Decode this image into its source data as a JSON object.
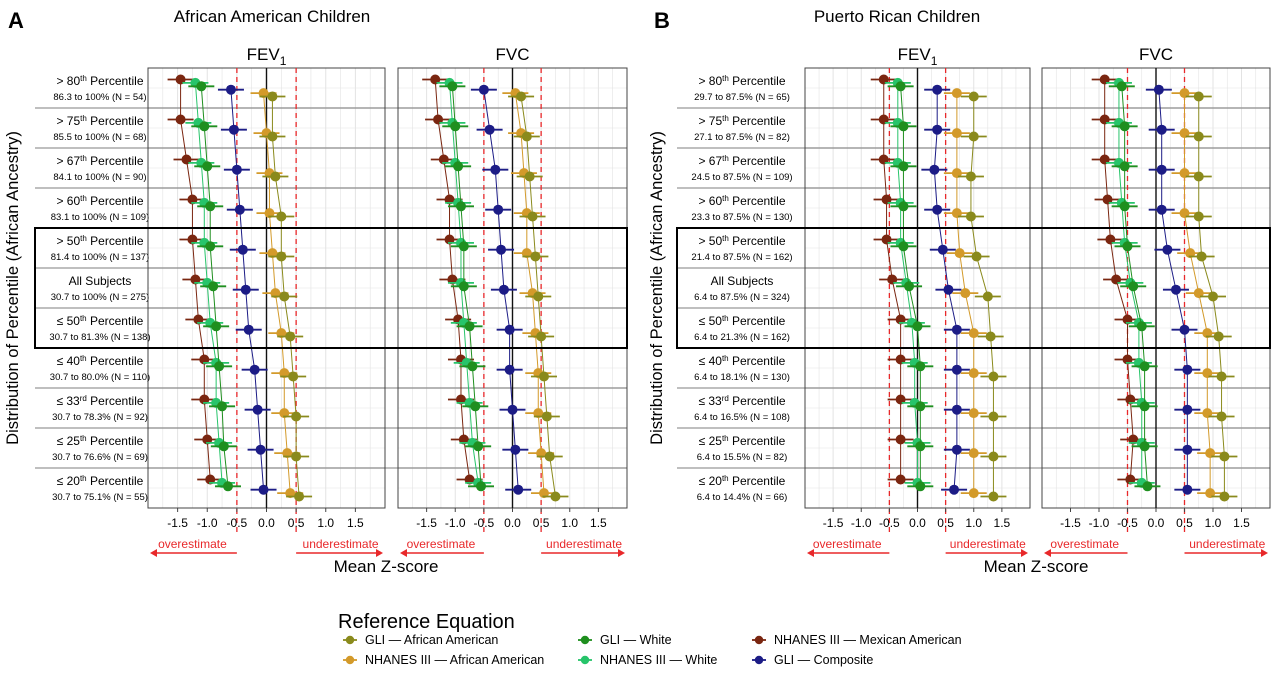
{
  "chart_data": [
    {
      "type": "scatter",
      "panel_letter": "A",
      "title": "African American Children",
      "ylabel": "Distribution of Percentile (African Ancestry)",
      "xlabel": "Mean Z-score",
      "xlim": [
        -2.0,
        2.0
      ],
      "xticks": [
        -1.5,
        -1.0,
        -0.5,
        0.0,
        0.5,
        1.0,
        1.5
      ],
      "grid": true,
      "reference_lines": [
        -0.5,
        0.0,
        0.5
      ],
      "over_label": "overestimate",
      "under_label": "underestimate",
      "highlight_rows": [
        4,
        6
      ],
      "rows": [
        {
          "main": "> 80",
          "sup": "th",
          "tail": " Percentile",
          "sub": "86.3 to 100% (N = 54)"
        },
        {
          "main": "> 75",
          "sup": "th",
          "tail": " Percentile",
          "sub": "85.5 to 100% (N = 68)"
        },
        {
          "main": "> 67",
          "sup": "th",
          "tail": " Percentile",
          "sub": "84.1 to 100% (N = 90)"
        },
        {
          "main": "> 60",
          "sup": "th",
          "tail": " Percentile",
          "sub": "83.1 to 100% (N = 109)"
        },
        {
          "main": "> 50",
          "sup": "th",
          "tail": " Percentile",
          "sub": "81.4 to 100% (N = 137)"
        },
        {
          "main": "All Subjects",
          "sup": "",
          "tail": "",
          "sub": "30.7 to 100% (N = 275)"
        },
        {
          "main": "≤ 50",
          "sup": "th",
          "tail": " Percentile",
          "sub": "30.7 to 81.3% (N = 138)"
        },
        {
          "main": "≤ 40",
          "sup": "th",
          "tail": " Percentile",
          "sub": "30.7 to 80.0% (N = 110)"
        },
        {
          "main": "≤ 33",
          "sup": "rd",
          "tail": " Percentile",
          "sub": "30.7 to 78.3% (N = 92)"
        },
        {
          "main": "≤ 25",
          "sup": "th",
          "tail": " Percentile",
          "sub": "30.7 to 76.6% (N = 69)"
        },
        {
          "main": "≤ 20",
          "sup": "th",
          "tail": " Percentile",
          "sub": "30.7 to 75.1% (N = 55)"
        }
      ],
      "facets": [
        {
          "label": "FEV",
          "label_sub": "1",
          "series": [
            {
              "name": "NHANES III — Mexican American",
              "values": [
                -1.45,
                -1.45,
                -1.35,
                -1.25,
                -1.25,
                -1.2,
                -1.15,
                -1.05,
                -1.05,
                -1.0,
                -0.95
              ]
            },
            {
              "name": "NHANES III — White",
              "values": [
                -1.2,
                -1.15,
                -1.1,
                -1.05,
                -1.05,
                -1.0,
                -0.95,
                -0.85,
                -0.85,
                -0.8,
                -0.75
              ]
            },
            {
              "name": "GLI — White",
              "values": [
                -1.1,
                -1.05,
                -1.0,
                -0.95,
                -0.95,
                -0.9,
                -0.85,
                -0.8,
                -0.75,
                -0.72,
                -0.65
              ]
            },
            {
              "name": "GLI — Composite",
              "values": [
                -0.6,
                -0.55,
                -0.5,
                -0.45,
                -0.4,
                -0.35,
                -0.3,
                -0.2,
                -0.15,
                -0.1,
                -0.05
              ]
            },
            {
              "name": "NHANES III — African American",
              "values": [
                -0.05,
                0.0,
                0.05,
                0.05,
                0.1,
                0.15,
                0.25,
                0.3,
                0.3,
                0.35,
                0.4
              ]
            },
            {
              "name": "GLI — African American",
              "values": [
                0.1,
                0.1,
                0.15,
                0.25,
                0.25,
                0.3,
                0.4,
                0.45,
                0.5,
                0.5,
                0.55
              ]
            }
          ]
        },
        {
          "label": "FVC",
          "label_sub": "",
          "series": [
            {
              "name": "NHANES III — Mexican American",
              "values": [
                -1.35,
                -1.3,
                -1.2,
                -1.1,
                -1.1,
                -1.05,
                -0.95,
                -0.9,
                -0.9,
                -0.85,
                -0.75
              ]
            },
            {
              "name": "NHANES III — White",
              "values": [
                -1.1,
                -1.05,
                -1.0,
                -0.95,
                -0.9,
                -0.9,
                -0.85,
                -0.8,
                -0.75,
                -0.7,
                -0.6
              ]
            },
            {
              "name": "GLI — White",
              "values": [
                -1.05,
                -1.0,
                -0.95,
                -0.9,
                -0.85,
                -0.85,
                -0.75,
                -0.7,
                -0.65,
                -0.6,
                -0.55
              ]
            },
            {
              "name": "GLI — Composite",
              "values": [
                -0.5,
                -0.4,
                -0.3,
                -0.25,
                -0.2,
                -0.15,
                -0.05,
                -0.05,
                0.0,
                0.05,
                0.1
              ]
            },
            {
              "name": "NHANES III — African American",
              "values": [
                0.05,
                0.15,
                0.2,
                0.25,
                0.25,
                0.35,
                0.4,
                0.45,
                0.45,
                0.5,
                0.55
              ]
            },
            {
              "name": "GLI — African American",
              "values": [
                0.15,
                0.25,
                0.3,
                0.35,
                0.4,
                0.45,
                0.5,
                0.55,
                0.6,
                0.65,
                0.75
              ]
            }
          ]
        }
      ]
    },
    {
      "type": "scatter",
      "panel_letter": "B",
      "title": "Puerto Rican Children",
      "ylabel": "Distribution of Percentile (African Ancestry)",
      "xlabel": "Mean Z-score",
      "xlim": [
        -2.0,
        2.0
      ],
      "xticks": [
        -1.5,
        -1.0,
        -0.5,
        0.0,
        0.5,
        1.0,
        1.5
      ],
      "grid": true,
      "reference_lines": [
        -0.5,
        0.0,
        0.5
      ],
      "over_label": "overestimate",
      "under_label": "underestimate",
      "highlight_rows": [
        4,
        6
      ],
      "rows": [
        {
          "main": "> 80",
          "sup": "th",
          "tail": " Percentile",
          "sub": "29.7 to 87.5% (N = 65)"
        },
        {
          "main": "> 75",
          "sup": "th",
          "tail": " Percentile",
          "sub": "27.1 to 87.5% (N = 82)"
        },
        {
          "main": "> 67",
          "sup": "th",
          "tail": " Percentile",
          "sub": "24.5 to 87.5% (N = 109)"
        },
        {
          "main": "> 60",
          "sup": "th",
          "tail": " Percentile",
          "sub": "23.3 to 87.5% (N = 130)"
        },
        {
          "main": "> 50",
          "sup": "th",
          "tail": " Percentile",
          "sub": "21.4 to 87.5% (N = 162)"
        },
        {
          "main": "All Subjects",
          "sup": "",
          "tail": "",
          "sub": "6.4 to 87.5% (N = 324)"
        },
        {
          "main": "≤ 50",
          "sup": "th",
          "tail": " Percentile",
          "sub": "6.4 to 21.3% (N = 162)"
        },
        {
          "main": "≤ 40",
          "sup": "th",
          "tail": " Percentile",
          "sub": "6.4 to 18.1% (N = 130)"
        },
        {
          "main": "≤ 33",
          "sup": "rd",
          "tail": " Percentile",
          "sub": "6.4 to 16.5% (N = 108)"
        },
        {
          "main": "≤ 25",
          "sup": "th",
          "tail": " Percentile",
          "sub": "6.4 to 15.5% (N = 82)"
        },
        {
          "main": "≤ 20",
          "sup": "th",
          "tail": " Percentile",
          "sub": "6.4 to 14.4% (N = 66)"
        }
      ],
      "facets": [
        {
          "label": "FEV",
          "label_sub": "1",
          "series": [
            {
              "name": "NHANES III — Mexican American",
              "values": [
                -0.6,
                -0.6,
                -0.6,
                -0.55,
                -0.55,
                -0.45,
                -0.3,
                -0.3,
                -0.3,
                -0.3,
                -0.3
              ]
            },
            {
              "name": "NHANES III — White",
              "values": [
                -0.35,
                -0.35,
                -0.35,
                -0.3,
                -0.3,
                -0.2,
                -0.1,
                -0.05,
                -0.05,
                0.0,
                0.0
              ]
            },
            {
              "name": "GLI — White",
              "values": [
                -0.3,
                -0.25,
                -0.25,
                -0.25,
                -0.25,
                -0.15,
                0.0,
                0.05,
                0.05,
                0.05,
                0.05
              ]
            },
            {
              "name": "GLI — Composite",
              "values": [
                0.35,
                0.35,
                0.3,
                0.35,
                0.45,
                0.55,
                0.7,
                0.7,
                0.7,
                0.7,
                0.65
              ]
            },
            {
              "name": "NHANES III — African American",
              "values": [
                0.7,
                0.7,
                0.7,
                0.7,
                0.75,
                0.85,
                1.0,
                1.0,
                1.0,
                1.0,
                1.0
              ]
            },
            {
              "name": "GLI — African American",
              "values": [
                1.0,
                1.0,
                0.95,
                0.95,
                1.05,
                1.25,
                1.3,
                1.35,
                1.35,
                1.35,
                1.35
              ]
            }
          ]
        },
        {
          "label": "FVC",
          "label_sub": "",
          "series": [
            {
              "name": "NHANES III — Mexican American",
              "values": [
                -0.9,
                -0.9,
                -0.9,
                -0.85,
                -0.8,
                -0.7,
                -0.5,
                -0.5,
                -0.45,
                -0.4,
                -0.45
              ]
            },
            {
              "name": "NHANES III — White",
              "values": [
                -0.65,
                -0.65,
                -0.65,
                -0.6,
                -0.55,
                -0.45,
                -0.3,
                -0.3,
                -0.25,
                -0.25,
                -0.25
              ]
            },
            {
              "name": "GLI — White",
              "values": [
                -0.6,
                -0.55,
                -0.55,
                -0.55,
                -0.5,
                -0.4,
                -0.25,
                -0.2,
                -0.2,
                -0.2,
                -0.15
              ]
            },
            {
              "name": "GLI — Composite",
              "values": [
                0.05,
                0.1,
                0.1,
                0.1,
                0.2,
                0.35,
                0.5,
                0.55,
                0.55,
                0.55,
                0.55
              ]
            },
            {
              "name": "NHANES III — African American",
              "values": [
                0.5,
                0.5,
                0.5,
                0.5,
                0.6,
                0.75,
                0.9,
                0.9,
                0.9,
                0.95,
                0.95
              ]
            },
            {
              "name": "GLI — African American",
              "values": [
                0.75,
                0.75,
                0.75,
                0.75,
                0.8,
                1.0,
                1.1,
                1.15,
                1.15,
                1.2,
                1.2
              ]
            }
          ]
        }
      ]
    }
  ],
  "legend": {
    "title": "Reference Equation",
    "items": [
      {
        "label": "GLI — African American",
        "color": "#8a8a1c"
      },
      {
        "label": "NHANES  III — African American",
        "color": "#d39a2a"
      },
      {
        "label": "GLI — White",
        "color": "#1f8f1f"
      },
      {
        "label": "NHANES  III — White",
        "color": "#27c46a"
      },
      {
        "label": "NHANES  III — Mexican American",
        "color": "#7a2610"
      },
      {
        "label": "GLI — Composite",
        "color": "#1c1c86"
      }
    ]
  },
  "colors": {
    "NHANES III — Mexican American": "#7a2610",
    "NHANES III — White": "#27c46a",
    "GLI — White": "#1f8f1f",
    "GLI — Composite": "#1c1c86",
    "NHANES III — African American": "#d39a2a",
    "GLI — African American": "#8a8a1c",
    "reference_red": "#e8282a"
  }
}
